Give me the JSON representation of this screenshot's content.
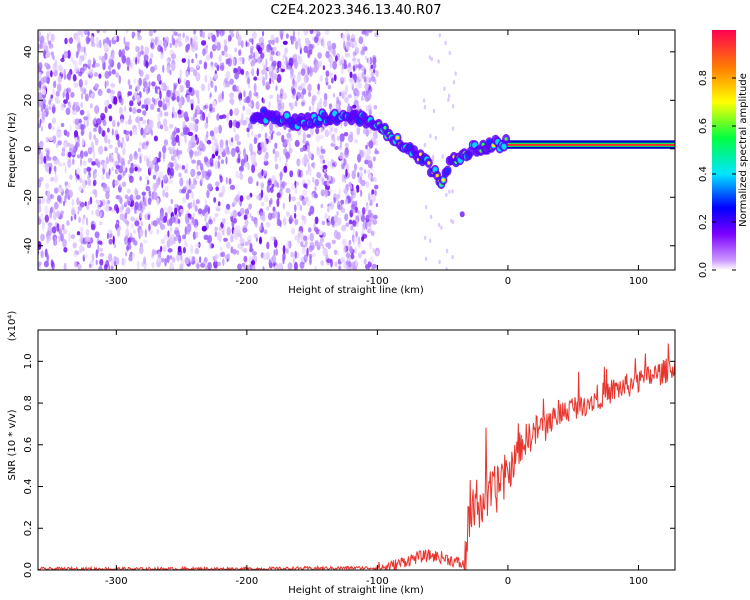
{
  "title": "C2E4.2023.346.13.40.R07",
  "chart_data": [
    {
      "type": "heatmap",
      "xlabel": "Height of straight line (km)",
      "ylabel": "Frequency (Hz)",
      "xlim": [
        -360,
        128
      ],
      "ylim": [
        -50,
        49
      ],
      "xticks": [
        -300,
        -200,
        -100,
        0,
        100
      ],
      "yticks": [
        -40,
        -20,
        0,
        20,
        40
      ],
      "grid": false,
      "ridge": {
        "x": [
          -195,
          -180,
          -170,
          -160,
          -150,
          -140,
          -130,
          -120,
          -110,
          -100,
          -90,
          -80,
          -70,
          -60,
          -55,
          -50,
          -45,
          -40,
          -35,
          -30,
          -25,
          -20,
          -15,
          -10,
          -5,
          0,
          10,
          20,
          40,
          60,
          80,
          100,
          120,
          128
        ],
        "y": [
          13,
          14,
          12,
          11,
          12,
          13,
          13,
          13,
          12,
          10,
          5,
          1,
          -3,
          -7,
          -11,
          -13,
          -6,
          -5,
          -3,
          -1,
          0,
          1,
          1,
          2,
          2,
          3,
          2,
          2,
          1.5,
          1.5,
          1.5,
          1.5,
          1.5,
          1.5
        ]
      },
      "colorbar": {
        "label": "Normalized spectral amplitude",
        "ticks": [
          0.0,
          0.2,
          0.4,
          0.6,
          0.8
        ],
        "range": [
          0,
          1
        ],
        "colors": [
          "#ffffff",
          "#cc99ff",
          "#7a00ff",
          "#0000ff",
          "#00e5ff",
          "#00ff40",
          "#ffff00",
          "#ff8000",
          "#ff0050"
        ]
      }
    },
    {
      "type": "line",
      "xlabel": "Height of straight line (km)",
      "ylabel": "SNR (10 * v/v)",
      "yscale_label": "(x10⁴)",
      "xlim": [
        -360,
        128
      ],
      "ylim": [
        0,
        1.15
      ],
      "xticks": [
        -300,
        -200,
        -100,
        0,
        100
      ],
      "yticks": [
        0.0,
        0.2,
        0.4,
        0.6,
        0.8,
        1.0
      ],
      "grid": false,
      "color": "#e8352e",
      "series": [
        {
          "x": [
            -360,
            -300,
            -200,
            -120,
            -100,
            -90,
            -80,
            -70,
            -60,
            -50,
            -40,
            -33,
            -30,
            -25,
            -20,
            -15,
            -10,
            -5,
            0,
            10,
            20,
            30,
            40,
            50,
            60,
            70,
            80,
            90,
            100,
            110,
            120,
            128
          ],
          "values": [
            0.005,
            0.005,
            0.005,
            0.01,
            0.01,
            0.015,
            0.04,
            0.06,
            0.07,
            0.06,
            0.04,
            0.02,
            0.22,
            0.3,
            0.32,
            0.35,
            0.38,
            0.42,
            0.45,
            0.6,
            0.66,
            0.7,
            0.75,
            0.78,
            0.8,
            0.83,
            0.86,
            0.88,
            0.9,
            0.93,
            0.95,
            0.98
          ]
        }
      ]
    }
  ]
}
